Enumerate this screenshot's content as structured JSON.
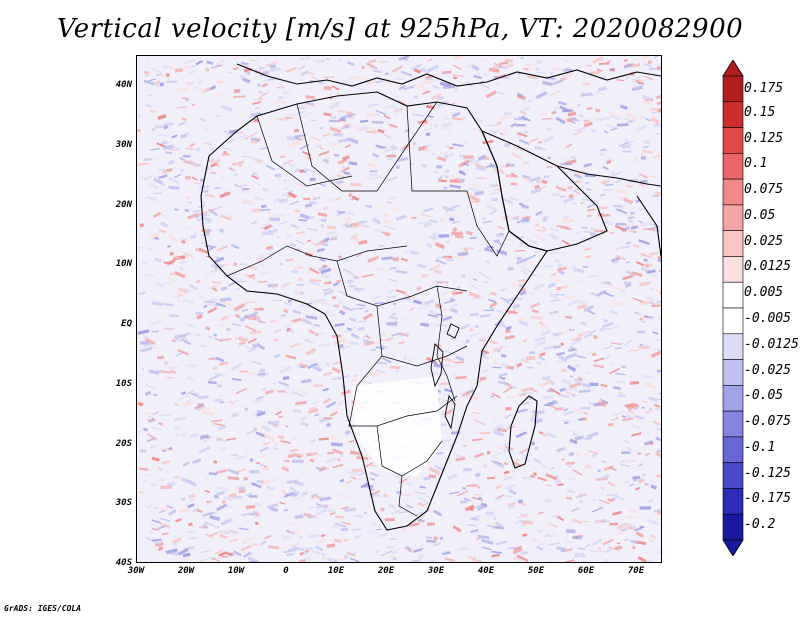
{
  "title": "Vertical velocity [m/s] at 925hPa, VT: 2020082900",
  "footer": "GrADS: IGES/COLA",
  "map": {
    "lat_range": [
      -40,
      45
    ],
    "lon_range": [
      -30,
      75
    ],
    "lat_ticks": [
      "40N",
      "30N",
      "20N",
      "10N",
      "EQ",
      "10S",
      "20S",
      "30S",
      "40S"
    ],
    "lon_ticks": [
      "30W",
      "20W",
      "10W",
      "0",
      "10E",
      "20E",
      "30E",
      "40E",
      "50E",
      "60E",
      "70E"
    ]
  },
  "colorbar": {
    "labels": [
      "0.175",
      "0.15",
      "0.125",
      "0.1",
      "0.075",
      "0.05",
      "0.025",
      "0.0125",
      "0.005",
      "-0.005",
      "-0.0125",
      "-0.025",
      "-0.05",
      "-0.075",
      "-0.1",
      "-0.125",
      "-0.175",
      "-0.2"
    ],
    "colors": [
      "#b21e1e",
      "#cf2e2e",
      "#e04848",
      "#ea6666",
      "#f08888",
      "#f4a6a6",
      "#f8c4c4",
      "#fbdede",
      "#ffffff",
      "#ffffff",
      "#dcdcf6",
      "#c0c0ee",
      "#a2a2e6",
      "#8484de",
      "#6666d4",
      "#4848c8",
      "#2c2cb8",
      "#1818a0"
    ]
  }
}
